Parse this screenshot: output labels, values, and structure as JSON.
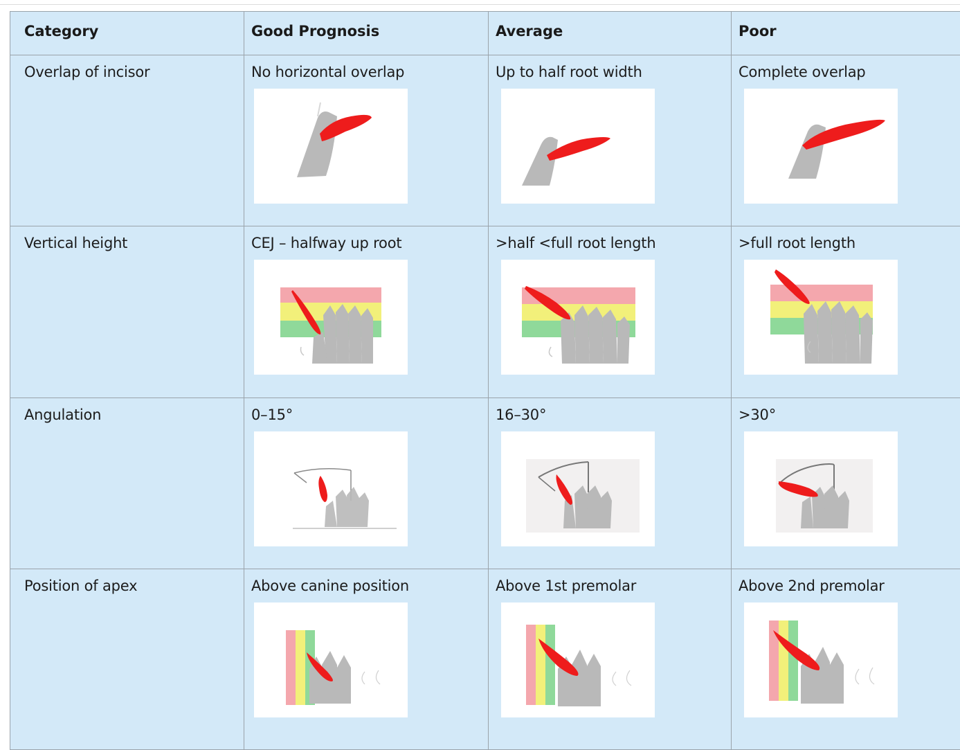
{
  "columns": [
    "Category",
    "Good Prognosis",
    "Average",
    "Poor"
  ],
  "rows": [
    {
      "category": "Overlap of incisor",
      "cells": [
        {
          "text": "No horizontal overlap",
          "figure": "overlap-none-diagram"
        },
        {
          "text": "Up to half root width",
          "figure": "overlap-half-diagram"
        },
        {
          "text": "Complete overlap",
          "figure": "overlap-complete-diagram"
        }
      ]
    },
    {
      "category": "Vertical height",
      "cells": [
        {
          "text": "CEJ – halfway up root",
          "figure": "height-low-diagram"
        },
        {
          "text": ">half  <full root length",
          "figure": "height-mid-diagram"
        },
        {
          "text": ">full root length",
          "figure": "height-high-diagram"
        }
      ]
    },
    {
      "category": "Angulation",
      "cells": [
        {
          "text": "0–15°",
          "figure": "angulation-small-diagram"
        },
        {
          "text": "16–30°",
          "figure": "angulation-mid-diagram"
        },
        {
          "text": ">30°",
          "figure": "angulation-large-diagram"
        }
      ]
    },
    {
      "category": "Position of apex",
      "cells": [
        {
          "text": "Above canine position",
          "figure": "apex-canine-diagram"
        },
        {
          "text": "Above 1st premolar",
          "figure": "apex-first-premolar-diagram"
        },
        {
          "text": "Above 2nd premolar",
          "figure": "apex-second-premolar-diagram"
        }
      ]
    }
  ],
  "colors": {
    "table_bg": "#d3e9f8",
    "border": "#9aa3aa",
    "canine": "#ee1c1c",
    "tooth": "#b9b9b9",
    "zone_red": "#f4a7ad",
    "zone_yellow": "#f2f07a",
    "zone_green": "#8fd99a"
  }
}
